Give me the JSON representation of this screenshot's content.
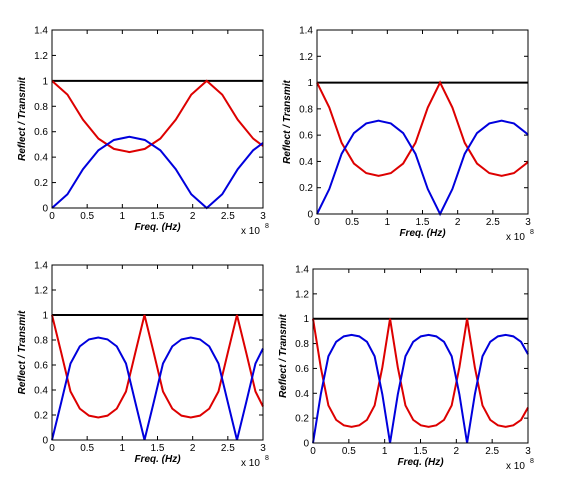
{
  "chart_data": [
    {
      "type": "line",
      "xlabel": "Freq. (Hz)",
      "ylabel": "Reflect / Transmit",
      "x_multiplier": "x 10",
      "x_multiplier_exponent": "8",
      "xlim": [
        0,
        3
      ],
      "xticks": [
        0,
        0.5,
        1,
        1.5,
        2,
        2.5,
        3
      ],
      "ylim": [
        0,
        1.4
      ],
      "yticks": [
        0,
        0.2,
        0.4,
        0.6,
        0.8,
        1,
        1.2,
        1.4
      ],
      "x": [
        0,
        0.22,
        0.44,
        0.66,
        0.88,
        1.1,
        1.32,
        1.54,
        1.76,
        1.98,
        2.2,
        2.42,
        2.64,
        2.86,
        3
      ],
      "series": [
        {
          "color": "#000000",
          "values": [
            1,
            1,
            1,
            1,
            1,
            1,
            1,
            1,
            1,
            1,
            1,
            1,
            1,
            1,
            1
          ]
        },
        {
          "color": "#dd0000",
          "values": [
            1,
            0.892,
            0.695,
            0.546,
            0.465,
            0.44,
            0.465,
            0.546,
            0.695,
            0.892,
            1,
            0.892,
            0.695,
            0.546,
            0.488
          ]
        },
        {
          "color": "#0000dd",
          "values": [
            0,
            0.108,
            0.305,
            0.454,
            0.535,
            0.56,
            0.535,
            0.454,
            0.305,
            0.108,
            0,
            0.108,
            0.305,
            0.454,
            0.512
          ]
        }
      ]
    },
    {
      "type": "line",
      "xlabel": "Freq. (Hz)",
      "ylabel": "Reflect / Transmit",
      "x_multiplier": "x 10",
      "x_multiplier_exponent": "8",
      "xlim": [
        0,
        3
      ],
      "xticks": [
        0,
        0.5,
        1,
        1.5,
        2,
        2.5,
        3
      ],
      "ylim": [
        0,
        1.4
      ],
      "yticks": [
        0,
        0.2,
        0.4,
        0.6,
        0.8,
        1,
        1.2,
        1.4
      ],
      "x": [
        0,
        0.175,
        0.35,
        0.525,
        0.7,
        0.875,
        1.05,
        1.225,
        1.4,
        1.575,
        1.75,
        1.925,
        2.1,
        2.275,
        2.45,
        2.625,
        2.8,
        2.975,
        3
      ],
      "series": [
        {
          "color": "#000000",
          "values": [
            1,
            1,
            1,
            1,
            1,
            1,
            1,
            1,
            1,
            1,
            1,
            1,
            1,
            1,
            1,
            1,
            1,
            1,
            1
          ]
        },
        {
          "color": "#dd0000",
          "values": [
            1,
            0.81,
            0.542,
            0.384,
            0.311,
            0.29,
            0.311,
            0.384,
            0.542,
            0.81,
            1,
            0.81,
            0.542,
            0.384,
            0.311,
            0.29,
            0.311,
            0.384,
            0.4
          ]
        },
        {
          "color": "#0000dd",
          "values": [
            0,
            0.19,
            0.458,
            0.616,
            0.689,
            0.71,
            0.689,
            0.616,
            0.458,
            0.19,
            0,
            0.19,
            0.458,
            0.616,
            0.689,
            0.71,
            0.689,
            0.616,
            0.6
          ]
        }
      ]
    },
    {
      "type": "line",
      "xlabel": "Freq. (Hz)",
      "ylabel": "Reflect / Transmit",
      "x_multiplier": "x 10",
      "x_multiplier_exponent": "8",
      "xlim": [
        0,
        3
      ],
      "xticks": [
        0,
        0.5,
        1,
        1.5,
        2,
        2.5,
        3
      ],
      "ylim": [
        0,
        1.4
      ],
      "yticks": [
        0,
        0.2,
        0.4,
        0.6,
        0.8,
        1,
        1.2,
        1.4
      ],
      "x": [
        0,
        0.132,
        0.263,
        0.395,
        0.526,
        0.658,
        0.789,
        0.921,
        1.052,
        1.184,
        1.315,
        1.447,
        1.578,
        1.71,
        1.841,
        1.973,
        2.104,
        2.236,
        2.367,
        2.499,
        2.63,
        2.762,
        2.893,
        3
      ],
      "series": [
        {
          "color": "#000000",
          "values": [
            1,
            1,
            1,
            1,
            1,
            1,
            1,
            1,
            1,
            1,
            1,
            1,
            1,
            1,
            1,
            1,
            1,
            1,
            1,
            1,
            1,
            1,
            1,
            1
          ]
        },
        {
          "color": "#dd0000",
          "values": [
            1,
            0.697,
            0.388,
            0.251,
            0.195,
            0.18,
            0.195,
            0.251,
            0.388,
            0.697,
            1,
            0.697,
            0.388,
            0.251,
            0.195,
            0.18,
            0.195,
            0.251,
            0.388,
            0.697,
            1,
            0.697,
            0.388,
            0.268
          ]
        },
        {
          "color": "#0000dd",
          "values": [
            0,
            0.303,
            0.612,
            0.749,
            0.805,
            0.82,
            0.805,
            0.749,
            0.612,
            0.303,
            0,
            0.303,
            0.612,
            0.749,
            0.805,
            0.82,
            0.805,
            0.749,
            0.612,
            0.303,
            0,
            0.303,
            0.612,
            0.732
          ]
        }
      ]
    },
    {
      "type": "line",
      "xlabel": "Freq. (Hz)",
      "ylabel": "Reflect / Transmit",
      "x_multiplier": "x 10",
      "x_multiplier_exponent": "8",
      "xlim": [
        0,
        3
      ],
      "xticks": [
        0,
        0.5,
        1,
        1.5,
        2,
        2.5,
        3
      ],
      "ylim": [
        0,
        1.4
      ],
      "yticks": [
        0,
        0.2,
        0.4,
        0.6,
        0.8,
        1,
        1.2,
        1.4
      ],
      "x": [
        0,
        0.108,
        0.215,
        0.323,
        0.43,
        0.538,
        0.645,
        0.753,
        0.86,
        0.968,
        1.075,
        1.183,
        1.29,
        1.398,
        1.505,
        1.613,
        1.72,
        1.828,
        1.935,
        2.043,
        2.15,
        2.258,
        2.365,
        2.473,
        2.58,
        2.688,
        2.795,
        2.903,
        3
      ],
      "series": [
        {
          "color": "#000000",
          "values": [
            1,
            1,
            1,
            1,
            1,
            1,
            1,
            1,
            1,
            1,
            1,
            1,
            1,
            1,
            1,
            1,
            1,
            1,
            1,
            1,
            1,
            1,
            1,
            1,
            1,
            1,
            1,
            1,
            1
          ]
        },
        {
          "color": "#dd0000",
          "values": [
            1,
            0.61,
            0.302,
            0.186,
            0.142,
            0.13,
            0.142,
            0.186,
            0.302,
            0.61,
            1,
            0.61,
            0.302,
            0.186,
            0.142,
            0.13,
            0.142,
            0.186,
            0.302,
            0.61,
            1,
            0.61,
            0.302,
            0.186,
            0.142,
            0.13,
            0.142,
            0.186,
            0.286
          ]
        },
        {
          "color": "#0000dd",
          "values": [
            0,
            0.39,
            0.698,
            0.814,
            0.858,
            0.87,
            0.858,
            0.814,
            0.698,
            0.39,
            0,
            0.39,
            0.698,
            0.814,
            0.858,
            0.87,
            0.858,
            0.814,
            0.698,
            0.39,
            0,
            0.39,
            0.698,
            0.814,
            0.858,
            0.87,
            0.858,
            0.814,
            0.714
          ]
        }
      ]
    }
  ]
}
